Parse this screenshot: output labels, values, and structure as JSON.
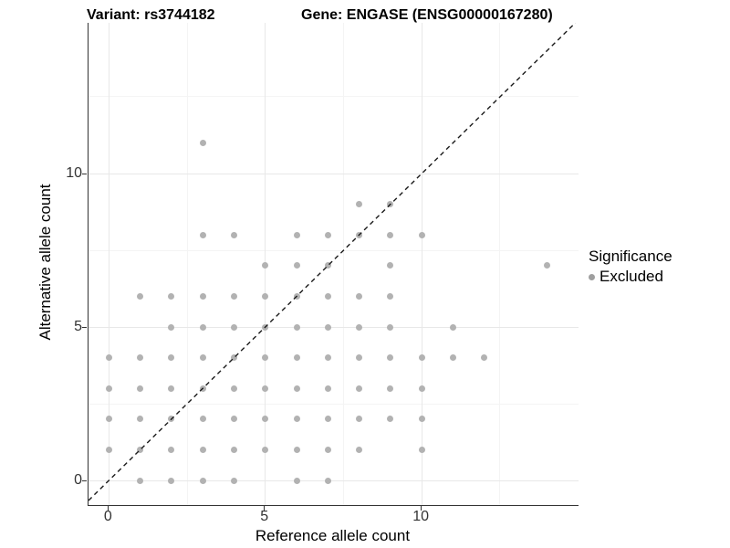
{
  "header": {
    "variant_title": "Variant: rs3744182",
    "gene_title": "Gene: ENGASE (ENSG00000167280)"
  },
  "axes": {
    "x_title": "Reference allele count",
    "y_title": "Alternative allele count",
    "x_tick_labels": [
      "0",
      "5",
      "10"
    ],
    "y_tick_labels": [
      "0",
      "5",
      "10"
    ]
  },
  "legend": {
    "title": "Significance",
    "items": [
      {
        "label": "Excluded",
        "marker_color": "#9f9f9f"
      }
    ]
  },
  "colors": {
    "point": "#b2b2b2",
    "axis_line": "#333333",
    "grid_major": "#e8e8e8",
    "grid_minor": "#f4f4f4",
    "tick_text": "#333333",
    "reference_line": "#1a1a1a",
    "background": "#ffffff"
  },
  "chart_data": {
    "type": "scatter",
    "title": "Variant: rs3744182 / Gene: ENGASE (ENSG00000167280)",
    "xlabel": "Reference allele count",
    "ylabel": "Alternative allele count",
    "xlim": [
      -0.65,
      15.01
    ],
    "ylim": [
      -0.8,
      14.91
    ],
    "x_major_ticks": [
      0,
      5,
      10
    ],
    "x_minor_ticks": [
      2.5,
      7.5,
      12.5
    ],
    "y_major_ticks": [
      0,
      5,
      10
    ],
    "y_minor_ticks": [
      2.5,
      7.5,
      12.5
    ],
    "grid": "major_and_minor",
    "legend_position": "right",
    "reference_line": {
      "type": "abline",
      "slope": 1,
      "intercept": 0,
      "style": "dashed"
    },
    "series": [
      {
        "name": "Excluded",
        "marker": "circle",
        "color": "#b2b2b2",
        "points": [
          [
            1,
            0
          ],
          [
            2,
            0
          ],
          [
            3,
            0
          ],
          [
            4,
            0
          ],
          [
            6,
            0
          ],
          [
            7,
            0
          ],
          [
            0,
            1
          ],
          [
            1,
            1
          ],
          [
            2,
            1
          ],
          [
            3,
            1
          ],
          [
            4,
            1
          ],
          [
            5,
            1
          ],
          [
            6,
            1
          ],
          [
            7,
            1
          ],
          [
            8,
            1
          ],
          [
            10,
            1
          ],
          [
            0,
            2
          ],
          [
            1,
            2
          ],
          [
            2,
            2
          ],
          [
            3,
            2
          ],
          [
            4,
            2
          ],
          [
            5,
            2
          ],
          [
            6,
            2
          ],
          [
            7,
            2
          ],
          [
            8,
            2
          ],
          [
            9,
            2
          ],
          [
            10,
            2
          ],
          [
            0,
            3
          ],
          [
            1,
            3
          ],
          [
            2,
            3
          ],
          [
            3,
            3
          ],
          [
            4,
            3
          ],
          [
            5,
            3
          ],
          [
            6,
            3
          ],
          [
            7,
            3
          ],
          [
            8,
            3
          ],
          [
            9,
            3
          ],
          [
            10,
            3
          ],
          [
            0,
            4
          ],
          [
            1,
            4
          ],
          [
            2,
            4
          ],
          [
            3,
            4
          ],
          [
            4,
            4
          ],
          [
            5,
            4
          ],
          [
            6,
            4
          ],
          [
            7,
            4
          ],
          [
            8,
            4
          ],
          [
            9,
            4
          ],
          [
            10,
            4
          ],
          [
            11,
            4
          ],
          [
            12,
            4
          ],
          [
            2,
            5
          ],
          [
            3,
            5
          ],
          [
            4,
            5
          ],
          [
            5,
            5
          ],
          [
            6,
            5
          ],
          [
            7,
            5
          ],
          [
            8,
            5
          ],
          [
            9,
            5
          ],
          [
            11,
            5
          ],
          [
            1,
            6
          ],
          [
            2,
            6
          ],
          [
            3,
            6
          ],
          [
            4,
            6
          ],
          [
            5,
            6
          ],
          [
            6,
            6
          ],
          [
            7,
            6
          ],
          [
            8,
            6
          ],
          [
            9,
            6
          ],
          [
            5,
            7
          ],
          [
            6,
            7
          ],
          [
            7,
            7
          ],
          [
            9,
            7
          ],
          [
            14,
            7
          ],
          [
            3,
            8
          ],
          [
            4,
            8
          ],
          [
            6,
            8
          ],
          [
            7,
            8
          ],
          [
            8,
            8
          ],
          [
            9,
            8
          ],
          [
            10,
            8
          ],
          [
            8,
            9
          ],
          [
            9,
            9
          ],
          [
            3,
            11
          ]
        ]
      }
    ]
  }
}
